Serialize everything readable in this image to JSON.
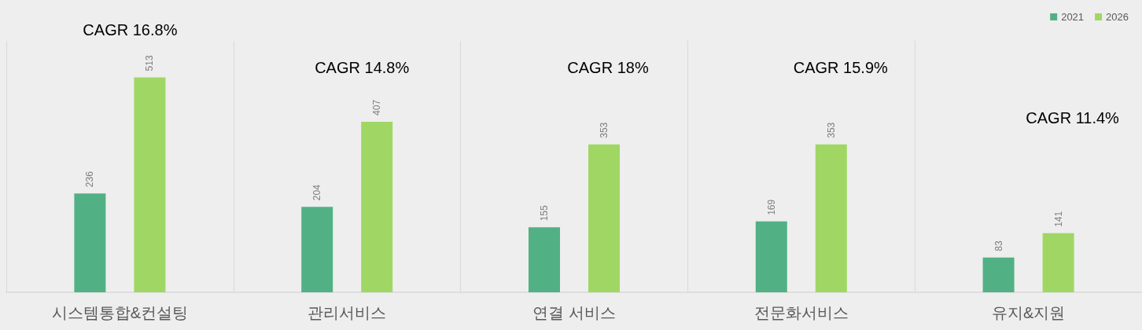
{
  "chart_data": {
    "type": "bar",
    "categories": [
      "시스템통합&컨설팅",
      "관리서비스",
      "연결 서비스",
      "전문화서비스",
      "유지&지원"
    ],
    "series": [
      {
        "name": "2021",
        "color": "#52b184",
        "values": [
          236,
          204,
          155,
          169,
          83
        ]
      },
      {
        "name": "2026",
        "color": "#a0d764",
        "values": [
          513,
          407,
          353,
          353,
          141
        ]
      }
    ],
    "data_labels": true,
    "grid": "x",
    "legend": "top right",
    "tick_labels": "x",
    "annotations": [
      "CAGR 16.8%",
      "CAGR 14.8%",
      "CAGR 18%",
      "CAGR 15.9%",
      "CAGR 11.4%"
    ]
  }
}
